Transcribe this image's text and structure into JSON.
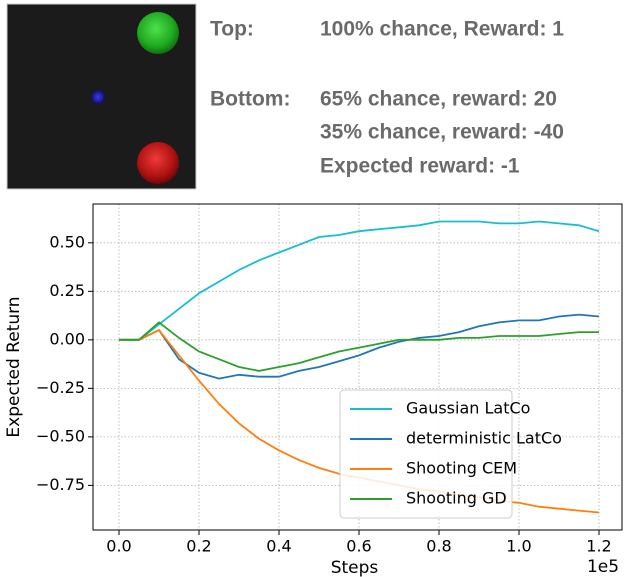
{
  "annotations": {
    "top_label": "Top:",
    "top_text": "100% chance, Reward: 1",
    "bottom_label": "Bottom:",
    "bottom_lines": [
      "65% chance, reward: 20",
      "35% chance, reward: -40",
      "Expected reward: -1"
    ]
  },
  "chart_data": {
    "type": "line",
    "x_label": "Steps",
    "y_label": "Expected Return",
    "x_offset_label": "1e5",
    "x": [
      0,
      0.05,
      0.1,
      0.15,
      0.2,
      0.25,
      0.3,
      0.35,
      0.4,
      0.45,
      0.5,
      0.55,
      0.6,
      0.65,
      0.7,
      0.75,
      0.8,
      0.85,
      0.9,
      0.95,
      1.0,
      1.05,
      1.1,
      1.15,
      1.2
    ],
    "series": [
      {
        "name": "Gaussian LatCo",
        "color": "#17becf",
        "values": [
          0,
          0,
          0.08,
          0.16,
          0.24,
          0.3,
          0.36,
          0.41,
          0.45,
          0.49,
          0.53,
          0.54,
          0.56,
          0.57,
          0.58,
          0.59,
          0.61,
          0.61,
          0.61,
          0.6,
          0.6,
          0.61,
          0.6,
          0.59,
          0.56
        ]
      },
      {
        "name": "deterministic LatCo",
        "color": "#1f77b4",
        "values": [
          0,
          0,
          0.05,
          -0.1,
          -0.17,
          -0.2,
          -0.18,
          -0.19,
          -0.19,
          -0.16,
          -0.14,
          -0.11,
          -0.08,
          -0.04,
          -0.01,
          0.01,
          0.02,
          0.04,
          0.07,
          0.09,
          0.1,
          0.1,
          0.12,
          0.13,
          0.12
        ]
      },
      {
        "name": "Shooting CEM",
        "color": "#ff7f0e",
        "values": [
          0,
          0,
          0.05,
          -0.08,
          -0.21,
          -0.33,
          -0.43,
          -0.51,
          -0.57,
          -0.62,
          -0.66,
          -0.69,
          -0.71,
          -0.73,
          -0.75,
          -0.77,
          -0.78,
          -0.8,
          -0.81,
          -0.83,
          -0.84,
          -0.86,
          -0.87,
          -0.88,
          -0.89
        ]
      },
      {
        "name": "Shooting GD",
        "color": "#2ca02c",
        "values": [
          0,
          0,
          0.09,
          0.01,
          -0.06,
          -0.1,
          -0.14,
          -0.16,
          -0.14,
          -0.12,
          -0.09,
          -0.06,
          -0.04,
          -0.02,
          0,
          0,
          0,
          0.01,
          0.01,
          0.02,
          0.02,
          0.02,
          0.03,
          0.04,
          0.04
        ]
      }
    ],
    "xlim": [
      -0.065,
      1.2575
    ],
    "ylim": [
      -0.98,
      0.7
    ],
    "xticks": [
      {
        "value": 0,
        "label": "0.0"
      },
      0.2,
      0.4,
      0.6,
      0.8,
      {
        "value": 1,
        "label": "1.0"
      },
      1.2
    ],
    "yticks": [
      {
        "value": -0.75,
        "label": "−0.75"
      },
      {
        "value": -0.5,
        "label": "−0.50"
      },
      {
        "value": -0.25,
        "label": "−0.25"
      },
      {
        "value": 0,
        "label": "0.00"
      },
      0.25,
      {
        "value": 0.5,
        "label": "0.50"
      }
    ],
    "grid": true,
    "legend_position": "lower right"
  }
}
